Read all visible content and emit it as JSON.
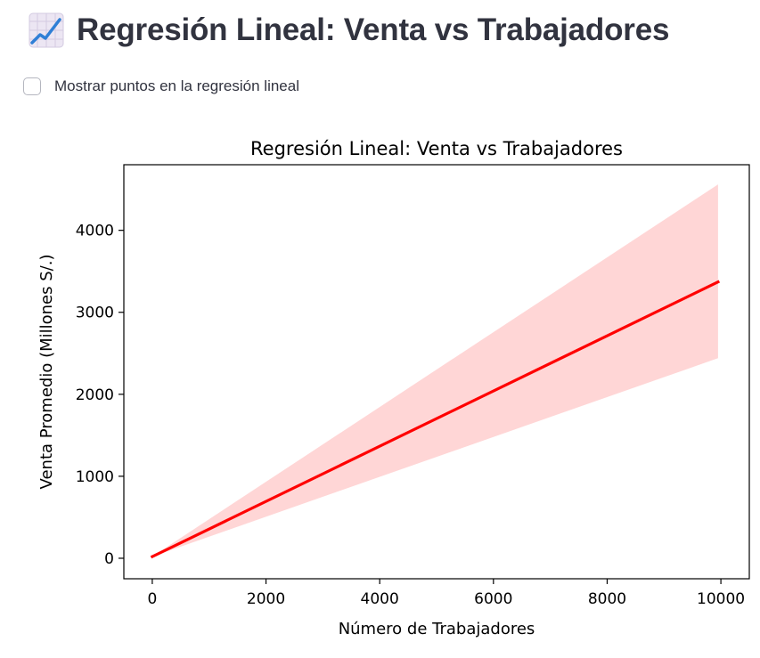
{
  "header": {
    "title": "Regresión Lineal: Venta vs Trabajadores",
    "icon": "chart-increasing-icon"
  },
  "controls": {
    "show_points_label": "Mostrar puntos en la regresión lineal",
    "show_points_checked": false
  },
  "colors": {
    "regression_line": "#ff0000",
    "confidence_band": "#ffd6d6",
    "text": "#31333f"
  },
  "chart_data": {
    "type": "line",
    "title": "Regresión Lineal: Venta vs Trabajadores",
    "xlabel": "Número de Trabajadores",
    "ylabel": "Venta Promedio (Millones S/.)",
    "xlim": [
      -500,
      10500
    ],
    "ylim": [
      -250,
      4800
    ],
    "xticks": [
      0,
      2000,
      4000,
      6000,
      8000,
      10000
    ],
    "yticks": [
      0,
      1000,
      2000,
      3000,
      4000
    ],
    "grid": false,
    "series": [
      {
        "x": [
          0,
          9950
        ],
        "y": [
          20,
          3370
        ],
        "band_lower": [
          20,
          2440
        ],
        "band_upper": [
          20,
          4560
        ]
      }
    ]
  }
}
